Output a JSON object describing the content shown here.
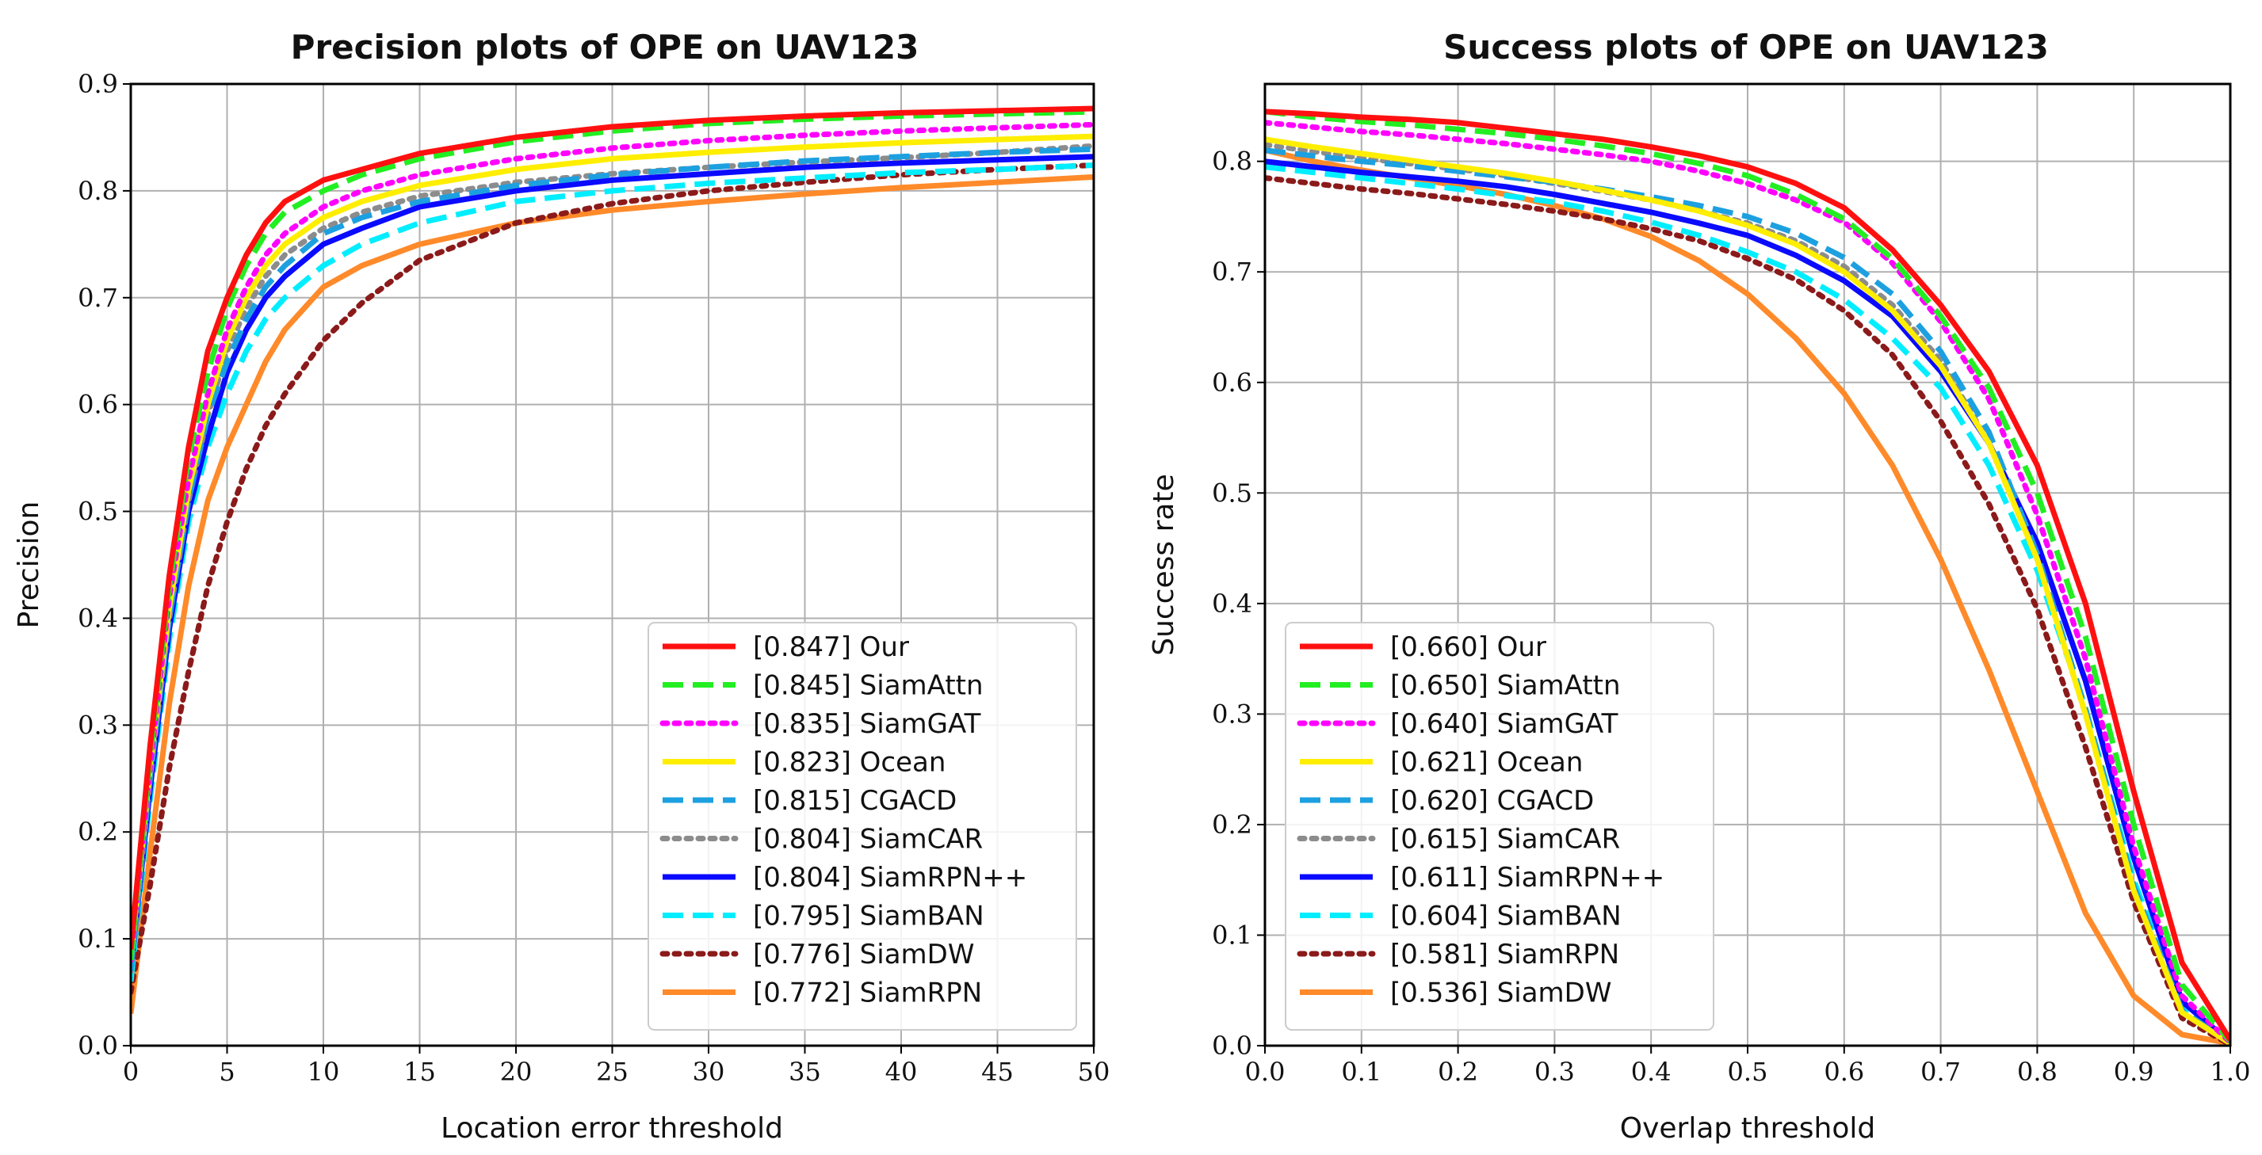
{
  "chart_data": [
    {
      "type": "line",
      "title": "Precision plots of OPE on UAV123",
      "xlabel": "Location error threshold",
      "ylabel": "Precision",
      "xlim": [
        0,
        50
      ],
      "ylim": [
        0.0,
        0.9
      ],
      "xticks": [
        "0",
        "5",
        "10",
        "15",
        "20",
        "25",
        "30",
        "35",
        "40",
        "45",
        "50"
      ],
      "yticks": [
        "0.0",
        "0.1",
        "0.2",
        "0.3",
        "0.4",
        "0.5",
        "0.6",
        "0.7",
        "0.8",
        "0.9"
      ],
      "grid": true,
      "legend_position": "bottom-right",
      "x": [
        0,
        1,
        2,
        3,
        4,
        5,
        6,
        7,
        8,
        10,
        12,
        15,
        20,
        25,
        30,
        35,
        40,
        45,
        50
      ],
      "series": [
        {
          "name": "Our",
          "label": "[0.847] Our",
          "color": "#ff1010",
          "dash": "solid",
          "values": [
            0.09,
            0.28,
            0.44,
            0.56,
            0.65,
            0.7,
            0.74,
            0.77,
            0.79,
            0.81,
            0.82,
            0.835,
            0.85,
            0.86,
            0.866,
            0.87,
            0.873,
            0.875,
            0.877
          ]
        },
        {
          "name": "SiamAttn",
          "label": "[0.845] SiamAttn",
          "color": "#22ee22",
          "dash": "dashed",
          "values": [
            0.08,
            0.27,
            0.43,
            0.55,
            0.63,
            0.69,
            0.73,
            0.76,
            0.78,
            0.8,
            0.815,
            0.83,
            0.846,
            0.856,
            0.863,
            0.867,
            0.87,
            0.872,
            0.874
          ]
        },
        {
          "name": "SiamGAT",
          "label": "[0.835] SiamGAT",
          "color": "#ff00ff",
          "dash": "dotted",
          "values": [
            0.08,
            0.26,
            0.42,
            0.53,
            0.61,
            0.67,
            0.71,
            0.74,
            0.76,
            0.785,
            0.8,
            0.815,
            0.83,
            0.84,
            0.847,
            0.852,
            0.856,
            0.859,
            0.862
          ]
        },
        {
          "name": "Ocean",
          "label": "[0.823] Ocean",
          "color": "#ffee00",
          "dash": "solid",
          "values": [
            0.08,
            0.26,
            0.41,
            0.52,
            0.6,
            0.66,
            0.7,
            0.73,
            0.75,
            0.775,
            0.79,
            0.805,
            0.82,
            0.83,
            0.836,
            0.841,
            0.845,
            0.848,
            0.851
          ]
        },
        {
          "name": "CGACD",
          "label": "[0.815] CGACD",
          "color": "#1da0e0",
          "dash": "dashed",
          "values": [
            0.07,
            0.25,
            0.4,
            0.51,
            0.59,
            0.64,
            0.68,
            0.71,
            0.73,
            0.76,
            0.775,
            0.79,
            0.805,
            0.815,
            0.822,
            0.828,
            0.832,
            0.836,
            0.839
          ]
        },
        {
          "name": "SiamCAR",
          "label": "[0.804] SiamCAR",
          "color": "#8c8c8c",
          "dash": "dotted",
          "values": [
            0.07,
            0.25,
            0.4,
            0.51,
            0.59,
            0.65,
            0.69,
            0.72,
            0.74,
            0.765,
            0.78,
            0.795,
            0.808,
            0.816,
            0.822,
            0.827,
            0.831,
            0.836,
            0.842
          ]
        },
        {
          "name": "SiamRPN++",
          "label": "[0.804] SiamRPN++",
          "color": "#0a0aff",
          "dash": "solid",
          "values": [
            0.07,
            0.24,
            0.39,
            0.5,
            0.57,
            0.63,
            0.67,
            0.7,
            0.72,
            0.75,
            0.765,
            0.785,
            0.8,
            0.81,
            0.816,
            0.822,
            0.826,
            0.829,
            0.832
          ]
        },
        {
          "name": "SiamBAN",
          "label": "[0.795] SiamBAN",
          "color": "#00eeff",
          "dash": "dashed",
          "values": [
            0.06,
            0.23,
            0.38,
            0.49,
            0.56,
            0.61,
            0.65,
            0.68,
            0.7,
            0.73,
            0.75,
            0.77,
            0.79,
            0.8,
            0.807,
            0.812,
            0.817,
            0.82,
            0.824
          ]
        },
        {
          "name": "SiamDW",
          "label": "[0.776] SiamDW",
          "color": "#8b1a1a",
          "dash": "dotted",
          "values": [
            0.05,
            0.15,
            0.26,
            0.35,
            0.43,
            0.49,
            0.54,
            0.58,
            0.61,
            0.66,
            0.695,
            0.735,
            0.77,
            0.788,
            0.8,
            0.808,
            0.815,
            0.82,
            0.824
          ]
        },
        {
          "name": "SiamRPN",
          "label": "[0.772] SiamRPN",
          "color": "#ff8a2a",
          "dash": "solid",
          "values": [
            0.03,
            0.18,
            0.32,
            0.43,
            0.51,
            0.56,
            0.6,
            0.64,
            0.67,
            0.71,
            0.73,
            0.75,
            0.77,
            0.782,
            0.79,
            0.797,
            0.803,
            0.808,
            0.813
          ]
        }
      ]
    },
    {
      "type": "line",
      "title": "Success plots of OPE on UAV123",
      "xlabel": "Overlap threshold",
      "ylabel": "Success rate",
      "xlim": [
        0.0,
        1.0
      ],
      "ylim": [
        0.0,
        0.87
      ],
      "xticks": [
        "0.0",
        "0.1",
        "0.2",
        "0.3",
        "0.4",
        "0.5",
        "0.6",
        "0.7",
        "0.8",
        "0.9",
        "1.0"
      ],
      "yticks": [
        "0.0",
        "0.1",
        "0.2",
        "0.3",
        "0.4",
        "0.5",
        "0.6",
        "0.7",
        "0.8"
      ],
      "grid": true,
      "legend_position": "bottom-left",
      "x": [
        0,
        0.05,
        0.1,
        0.15,
        0.2,
        0.25,
        0.3,
        0.35,
        0.4,
        0.45,
        0.5,
        0.55,
        0.6,
        0.65,
        0.7,
        0.75,
        0.8,
        0.85,
        0.9,
        0.95,
        1.0
      ],
      "series": [
        {
          "name": "Our",
          "label": "[0.660] Our",
          "color": "#ff1010",
          "dash": "solid",
          "values": [
            0.845,
            0.843,
            0.84,
            0.838,
            0.835,
            0.83,
            0.825,
            0.82,
            0.813,
            0.805,
            0.795,
            0.78,
            0.758,
            0.72,
            0.67,
            0.61,
            0.525,
            0.4,
            0.23,
            0.075,
            0.005
          ]
        },
        {
          "name": "SiamAttn",
          "label": "[0.650] SiamAttn",
          "color": "#22ee22",
          "dash": "dashed",
          "values": [
            0.845,
            0.84,
            0.836,
            0.833,
            0.829,
            0.825,
            0.82,
            0.814,
            0.807,
            0.798,
            0.787,
            0.77,
            0.748,
            0.712,
            0.66,
            0.595,
            0.5,
            0.37,
            0.2,
            0.055,
            0.004
          ]
        },
        {
          "name": "SiamGAT",
          "label": "[0.640] SiamGAT",
          "color": "#ff00ff",
          "dash": "dotted",
          "values": [
            0.835,
            0.831,
            0.827,
            0.824,
            0.82,
            0.816,
            0.811,
            0.806,
            0.8,
            0.791,
            0.78,
            0.765,
            0.745,
            0.708,
            0.655,
            0.585,
            0.48,
            0.35,
            0.18,
            0.045,
            0.003
          ]
        },
        {
          "name": "Ocean",
          "label": "[0.621] Ocean",
          "color": "#ffee00",
          "dash": "solid",
          "values": [
            0.82,
            0.813,
            0.807,
            0.801,
            0.795,
            0.789,
            0.782,
            0.774,
            0.765,
            0.755,
            0.742,
            0.725,
            0.7,
            0.665,
            0.615,
            0.545,
            0.44,
            0.3,
            0.14,
            0.03,
            0.002
          ]
        },
        {
          "name": "CGACD",
          "label": "[0.620] CGACD",
          "color": "#1da0e0",
          "dash": "dashed",
          "values": [
            0.81,
            0.805,
            0.8,
            0.796,
            0.791,
            0.786,
            0.781,
            0.775,
            0.768,
            0.76,
            0.75,
            0.735,
            0.713,
            0.68,
            0.628,
            0.555,
            0.445,
            0.305,
            0.145,
            0.032,
            0.002
          ]
        },
        {
          "name": "SiamCAR",
          "label": "[0.615] SiamCAR",
          "color": "#8c8c8c",
          "dash": "dotted",
          "values": [
            0.815,
            0.809,
            0.803,
            0.798,
            0.793,
            0.787,
            0.78,
            0.773,
            0.765,
            0.755,
            0.744,
            0.728,
            0.705,
            0.67,
            0.62,
            0.545,
            0.44,
            0.3,
            0.14,
            0.03,
            0.002
          ]
        },
        {
          "name": "SiamRPN++",
          "label": "[0.611] SiamRPN++",
          "color": "#0a0aff",
          "dash": "solid",
          "values": [
            0.8,
            0.795,
            0.79,
            0.786,
            0.782,
            0.777,
            0.77,
            0.762,
            0.754,
            0.744,
            0.733,
            0.715,
            0.692,
            0.66,
            0.61,
            0.545,
            0.455,
            0.33,
            0.17,
            0.04,
            0.003
          ]
        },
        {
          "name": "SiamBAN",
          "label": "[0.604] SiamBAN",
          "color": "#00eeff",
          "dash": "dashed",
          "values": [
            0.795,
            0.79,
            0.785,
            0.78,
            0.775,
            0.769,
            0.763,
            0.755,
            0.745,
            0.733,
            0.718,
            0.7,
            0.675,
            0.64,
            0.595,
            0.525,
            0.43,
            0.305,
            0.15,
            0.035,
            0.002
          ]
        },
        {
          "name": "SiamRPN",
          "label": "[0.581] SiamRPN",
          "color": "#8b1a1a",
          "dash": "dotted",
          "values": [
            0.785,
            0.78,
            0.775,
            0.771,
            0.766,
            0.761,
            0.755,
            0.748,
            0.739,
            0.728,
            0.712,
            0.693,
            0.665,
            0.625,
            0.565,
            0.49,
            0.395,
            0.27,
            0.13,
            0.025,
            0.001
          ]
        },
        {
          "name": "SiamDW",
          "label": "[0.536] SiamDW",
          "color": "#ff8a2a",
          "dash": "solid",
          "values": [
            0.81,
            0.8,
            0.792,
            0.785,
            0.778,
            0.77,
            0.76,
            0.748,
            0.732,
            0.71,
            0.68,
            0.64,
            0.59,
            0.525,
            0.44,
            0.34,
            0.23,
            0.12,
            0.045,
            0.01,
            0.002
          ]
        }
      ]
    }
  ]
}
